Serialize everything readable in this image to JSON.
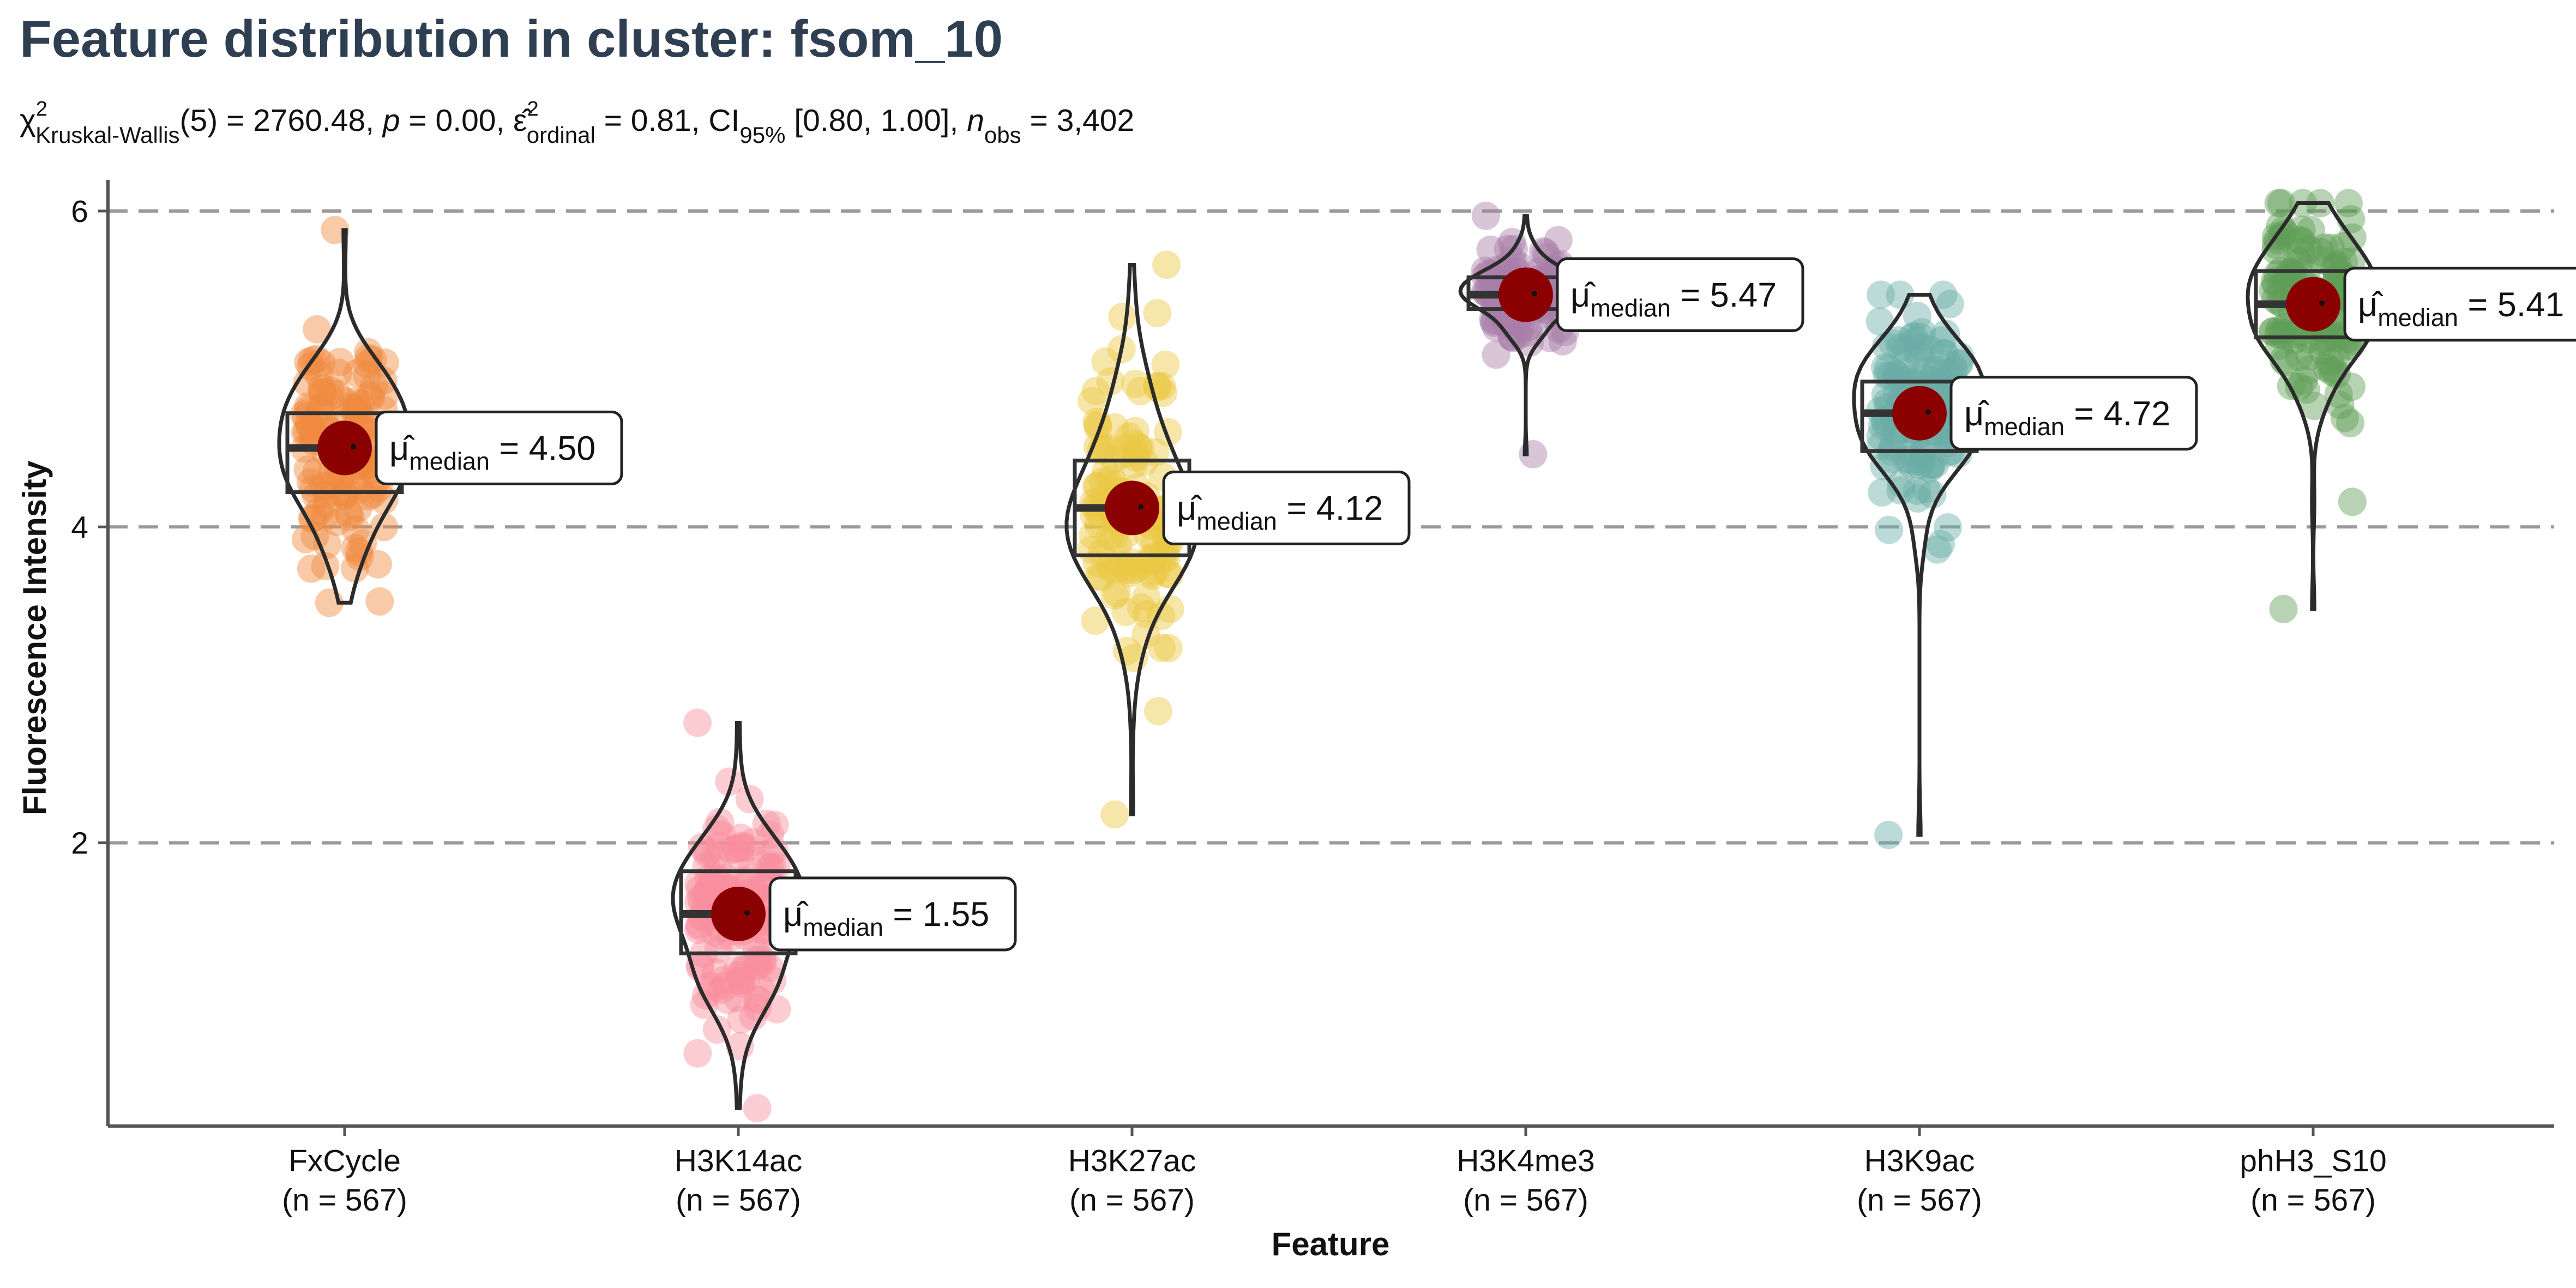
{
  "chart_data": {
    "type": "violin",
    "title": "Feature distribution in cluster: fsom_10",
    "subtitle": {
      "chi_symbol": "χ",
      "chi_sup": "2",
      "chi_sub": "Kruskal-Wallis",
      "chi_value": "(5) = 2760.48, ",
      "p_symbol": "p",
      "p_value": " = 0.00, ",
      "eps_symbol": "ε̂",
      "eps_sup": "2",
      "eps_sub": "ordinal",
      "eps_value": " = 0.81, CI",
      "ci_sub": "95%",
      "ci_value": " [0.80, 1.00], ",
      "n_symbol": "n",
      "n_sub": "obs",
      "n_value": " = 3,402"
    },
    "xlabel": "Feature",
    "ylabel": "Fluorescence Intensity",
    "ylim": [
      0.0,
      6.4
    ],
    "yticks": [
      2,
      4,
      6
    ],
    "grid": "horizontal dashed at y ticks",
    "label_prefix": "μ̂",
    "label_sub": "median",
    "categories": [
      "FxCycle",
      "H3K14ac",
      "H3K27ac",
      "H3K4me3",
      "H3K9ac",
      "phH3_S10"
    ],
    "category_counts": [
      "(n = 567)",
      "(n = 567)",
      "(n = 567)",
      "(n = 567)",
      "(n = 567)",
      "(n = 567)"
    ],
    "series": [
      {
        "category": "FxCycle",
        "color": "#f08a3e",
        "median": 4.5,
        "median_label": " = 4.50",
        "q1": 4.22,
        "q3": 4.72,
        "min": 3.52,
        "max": 5.88
      },
      {
        "category": "H3K14ac",
        "color": "#f98f9d",
        "median": 1.55,
        "median_label": " = 1.55",
        "q1": 1.3,
        "q3": 1.82,
        "min": 0.32,
        "max": 2.76
      },
      {
        "category": "H3K27ac",
        "color": "#ebc743",
        "median": 4.12,
        "median_label": " = 4.12",
        "q1": 3.82,
        "q3": 4.42,
        "min": 2.18,
        "max": 5.66
      },
      {
        "category": "H3K4me3",
        "color": "#a97ea8",
        "median": 5.47,
        "median_label": " = 5.47",
        "q1": 5.38,
        "q3": 5.58,
        "min": 4.46,
        "max": 5.97
      },
      {
        "category": "H3K9ac",
        "color": "#6aada7",
        "median": 4.72,
        "median_label": " = 4.72",
        "q1": 4.48,
        "q3": 4.92,
        "min": 2.05,
        "max": 5.47
      },
      {
        "category": "phH3_S10",
        "color": "#5f9e57",
        "median": 5.41,
        "median_label": " = 5.41",
        "q1": 5.2,
        "q3": 5.62,
        "min": 3.48,
        "max": 6.05
      }
    ],
    "median_point_color": "#8b0000"
  }
}
